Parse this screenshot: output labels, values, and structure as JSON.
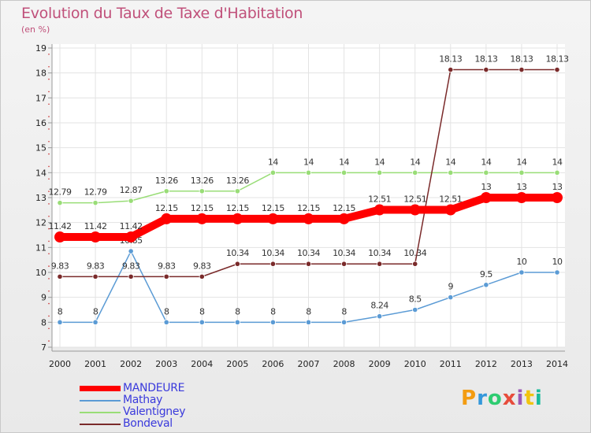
{
  "header": {
    "title": "Evolution du Taux de Taxe d'Habitation",
    "unit": "(en %)"
  },
  "logo": {
    "text": "Proxiti"
  },
  "chart_data": {
    "type": "line",
    "title": "Evolution du Taux de Taxe d'Habitation",
    "ylabel": "(en %)",
    "xlabel": "",
    "x": [
      "2000",
      "2001",
      "2002",
      "2003",
      "2004",
      "2005",
      "2006",
      "2007",
      "2008",
      "2009",
      "2010",
      "2011",
      "2012",
      "2013",
      "2014"
    ],
    "ylim": [
      7,
      19
    ],
    "yticks": [
      7,
      8,
      9,
      10,
      11,
      12,
      13,
      14,
      15,
      16,
      17,
      18,
      19
    ],
    "grid": true,
    "legend_position": "bottom-left",
    "series": [
      {
        "name": "MANDEURE",
        "color": "#ff0000",
        "values": [
          11.42,
          11.42,
          11.42,
          12.15,
          12.15,
          12.15,
          12.15,
          12.15,
          12.15,
          12.51,
          12.51,
          12.51,
          13,
          13,
          13
        ],
        "labels": [
          "11.42",
          "11.42",
          "11.42",
          "12.15",
          "12.15",
          "12.15",
          "12.15",
          "12.15",
          "12.15",
          "12.51",
          "12.51",
          "12.51",
          "13",
          "13",
          "13"
        ]
      },
      {
        "name": "Mathay",
        "color": "#5b9bd5",
        "values": [
          8,
          8,
          10.85,
          8,
          8,
          8,
          8,
          8,
          8,
          8.24,
          8.5,
          9,
          9.5,
          10,
          10
        ],
        "labels": [
          "8",
          "8",
          "10.85",
          "8",
          "8",
          "8",
          "8",
          "8",
          "8",
          "8.24",
          "8.5",
          "9",
          "9.5",
          "10",
          "10"
        ]
      },
      {
        "name": "Valentigney",
        "color": "#99dd77",
        "values": [
          12.79,
          12.79,
          12.87,
          13.26,
          13.26,
          13.26,
          14,
          14,
          14,
          14,
          14,
          14,
          14,
          14,
          14
        ],
        "labels": [
          "12.79",
          "12.79",
          "12.87",
          "13.26",
          "13.26",
          "13.26",
          "14",
          "14",
          "14",
          "14",
          "14",
          "14",
          "14",
          "14",
          "14"
        ]
      },
      {
        "name": "Bondeval",
        "color": "#7a2a2a",
        "values": [
          9.83,
          9.83,
          9.83,
          9.83,
          9.83,
          10.34,
          10.34,
          10.34,
          10.34,
          10.34,
          10.34,
          18.13,
          18.13,
          18.13,
          18.13
        ],
        "labels": [
          "9.83",
          "9.83",
          "9.83",
          "9.83",
          "9.83",
          "10.34",
          "10.34",
          "10.34",
          "10.34",
          "10.34",
          "10.34",
          "18.13",
          "18.13",
          "18.13",
          "18.13"
        ]
      }
    ]
  }
}
